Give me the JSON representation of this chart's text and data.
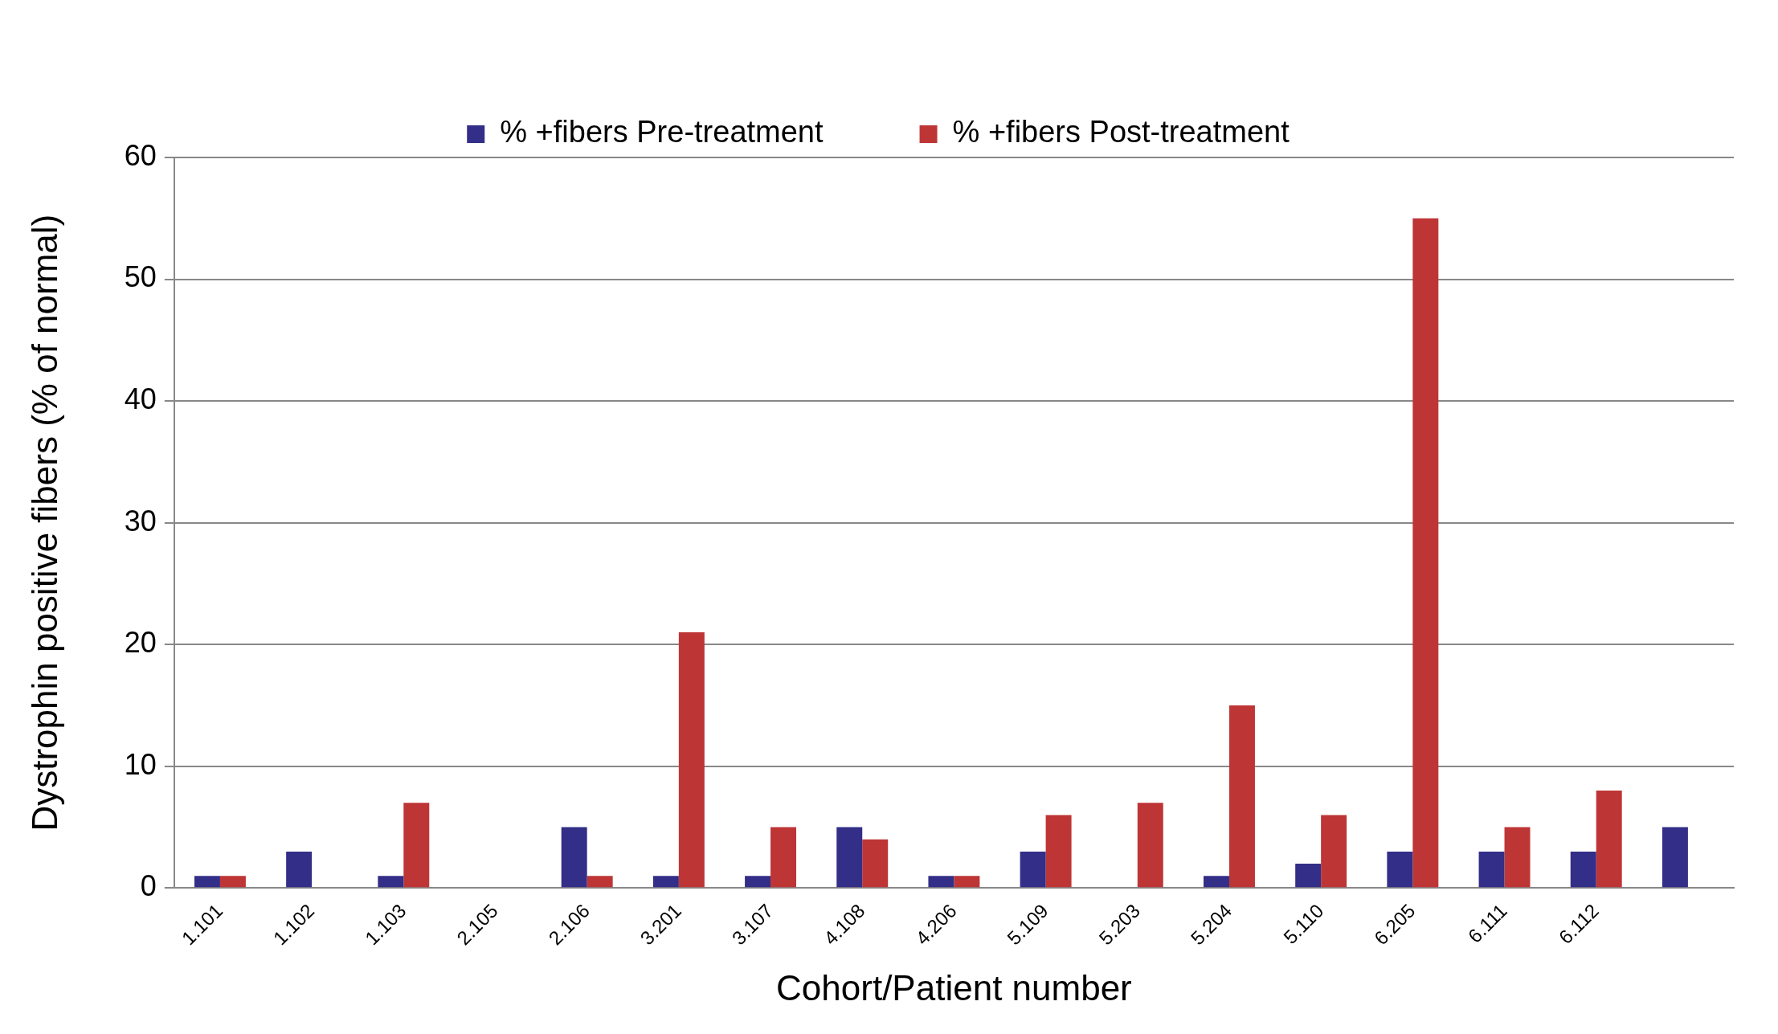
{
  "chart_data": {
    "type": "bar",
    "xlabel": "Cohort/Patient number",
    "ylabel": "Dystrophin positive fibers (% of normal)",
    "categories": [
      "1.101",
      "1.102",
      "1.103",
      "2.105",
      "2.106",
      "3.201",
      "3.107",
      "4.108",
      "4.206",
      "5.109",
      "5.203",
      "5.204",
      "5.110",
      "6.205",
      "6.111",
      "6.112",
      null
    ],
    "series": [
      {
        "name": "% +fibers Pre-treatment",
        "color": "#332e87",
        "values": [
          1,
          3,
          1,
          0,
          5,
          1,
          1,
          5,
          1,
          3,
          0,
          1,
          2,
          3,
          3,
          3,
          5
        ]
      },
      {
        "name": "% +fibers Post-treatment",
        "color": "#be3536",
        "values": [
          1,
          0,
          7,
          0,
          1,
          21,
          5,
          4,
          1,
          6,
          7,
          15,
          6,
          55,
          5,
          8,
          null
        ]
      }
    ],
    "ylim": [
      0,
      60
    ],
    "yticks": [
      0,
      10,
      20,
      30,
      40,
      50,
      60
    ],
    "grid": "y",
    "legend": "top"
  }
}
